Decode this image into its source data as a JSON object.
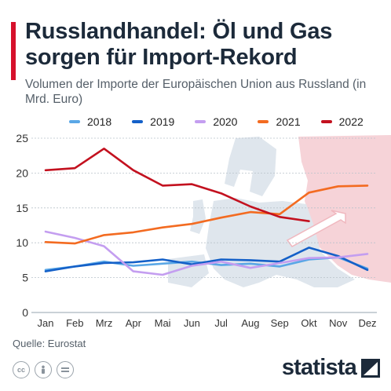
{
  "title": "Russlandhandel: Öl und Gas sorgen für Import-Rekord",
  "subtitle": "Volumen der Importe der Europäischen Union aus Russland (in Mrd. Euro)",
  "source": "Quelle: Eurostat",
  "brand": "statista",
  "icons": [
    "cc-icon",
    "person-icon",
    "equals-icon"
  ],
  "colors": {
    "accent": "#d6112c"
  },
  "chart_data": {
    "type": "line",
    "categories": [
      "Jan",
      "Feb",
      "Mrz",
      "Apr",
      "Mai",
      "Jun",
      "Jul",
      "Aug",
      "Sep",
      "Okt",
      "Nov",
      "Dez"
    ],
    "ylim": [
      0,
      25
    ],
    "yticks": [
      "0",
      "5",
      "10",
      "15",
      "20",
      "25"
    ],
    "grid": true,
    "legend": "top",
    "series": [
      {
        "name": "2018",
        "color": "#5aa7e6",
        "values": [
          6.1,
          6.6,
          7.3,
          6.7,
          7.0,
          7.3,
          6.8,
          7.0,
          6.6,
          7.6,
          7.9,
          6.3
        ]
      },
      {
        "name": "2019",
        "color": "#1460c8",
        "values": [
          5.9,
          6.6,
          7.1,
          7.2,
          7.6,
          6.9,
          7.6,
          7.5,
          7.3,
          9.3,
          8.1,
          6.1
        ]
      },
      {
        "name": "2020",
        "color": "#c49ef0",
        "values": [
          11.6,
          10.7,
          9.5,
          5.9,
          5.4,
          6.7,
          7.3,
          6.4,
          7.1,
          7.8,
          7.9,
          8.4
        ]
      },
      {
        "name": "2021",
        "color": "#f36b21",
        "values": [
          10.1,
          9.9,
          11.1,
          11.5,
          12.2,
          12.7,
          13.6,
          14.4,
          14.1,
          17.2,
          18.1,
          18.2
        ]
      },
      {
        "name": "2022",
        "color": "#c3111f",
        "values": [
          20.4,
          20.7,
          23.5,
          20.4,
          18.2,
          18.4,
          17.1,
          15.2,
          13.7,
          13.1,
          null,
          null
        ]
      }
    ]
  }
}
